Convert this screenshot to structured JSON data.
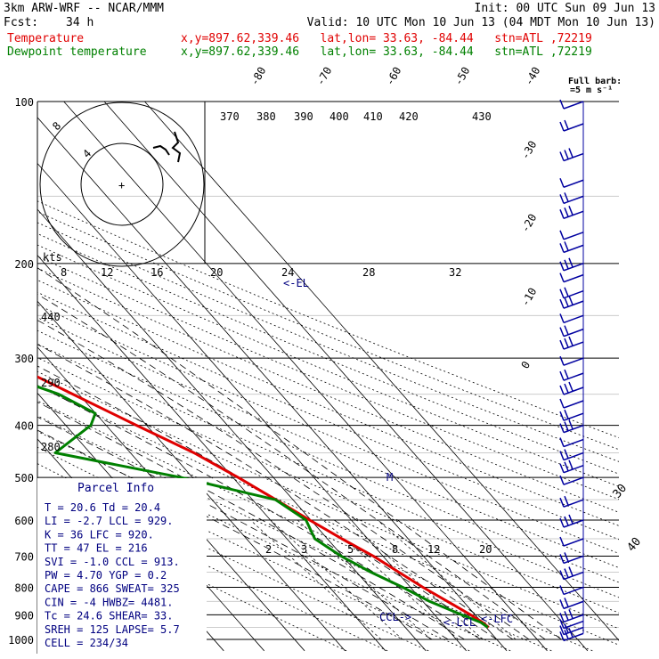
{
  "header": {
    "model": "3km ARW-WRF -- NCAR/MMM",
    "init": "Init: 00 UTC Sun 09 Jun 13",
    "fcst_label": "Fcst:",
    "fcst_hours": "34 h",
    "valid": "Valid: 10 UTC Mon 10 Jun 13 (04 MDT Mon 10 Jun 13)",
    "temp_label": "Temperature",
    "dew_label": "Dewpoint temperature",
    "coords_temp": "x,y=897.62,339.46   lat,lon= 33.63, -84.44   stn=ATL ,72219",
    "coords_dew": "x,y=897.62,339.46   lat,lon= 33.63, -84.44   stn=ATL ,72219"
  },
  "barb_key": {
    "line1": "Full barb:",
    "line2": "=5 m s⁻¹"
  },
  "hodograph": {
    "ring_labels": [
      "8",
      "4"
    ],
    "units_label": "kts",
    "speed_axis": [
      "8",
      "12",
      "16",
      "20",
      "24",
      "28",
      "32"
    ]
  },
  "parcel_info": {
    "title": "Parcel Info",
    "rows": [
      "T  =    20.6  Td =  20.4",
      "LI =    -2.7  LCL =  929.",
      "K  =      36  LFC =  920.",
      "TT =      47  EL  =   216",
      "SVI =   -1.0  CCL =  913.",
      "PW =    4.70  YGP =   0.2",
      "CAPE =   866  SWEAT=   325",
      "CIN =     -4  HWBZ= 4481.",
      "Tc =    24.6  SHEAR=   33.",
      "SREH =   125  LAPSE=   5.7",
      "CELL = 234/34"
    ]
  },
  "chart_data": {
    "type": "line",
    "title": "",
    "pressure_levels_hPa": [
      100,
      200,
      300,
      400,
      500,
      600,
      700,
      800,
      900,
      1000
    ],
    "pressure_tick_labels": [
      "100",
      "200",
      "300",
      "400",
      "500",
      "600",
      "700",
      "800",
      "900",
      "1000"
    ],
    "isotherm_labels_C": [
      "-80",
      "-70",
      "-60",
      "-50",
      "-40",
      "-30",
      "-20",
      "-10",
      "0",
      "30",
      "40"
    ],
    "theta_labels_K": [
      "370",
      "380",
      "390",
      "400",
      "410",
      "420",
      "430",
      "440",
      "290",
      "280",
      "270"
    ],
    "mixing_ratio_labels": [
      "2",
      "3",
      "5",
      "8",
      "12",
      "20"
    ],
    "annotations": [
      "EL",
      "M",
      "CCL",
      "LCL",
      "LFC"
    ],
    "series": [
      {
        "name": "Temperature",
        "color": "#e00000",
        "points": [
          [
            100,
            -65.6
          ],
          [
            150,
            -58.6
          ],
          [
            175,
            -58
          ],
          [
            200,
            -56.3
          ],
          [
            225,
            -54.6
          ],
          [
            250,
            -50.9
          ],
          [
            300,
            -41.8
          ],
          [
            350,
            -31.5
          ],
          [
            400,
            -22.5
          ],
          [
            450,
            -14.3
          ],
          [
            500,
            -8.7
          ],
          [
            550,
            -4.2
          ],
          [
            600,
            -0.3
          ],
          [
            650,
            3.6
          ],
          [
            700,
            7.6
          ],
          [
            750,
            10.4
          ],
          [
            800,
            13.1
          ],
          [
            850,
            16.1
          ],
          [
            900,
            18.9
          ],
          [
            930,
            20.2
          ],
          [
            950,
            20.6
          ]
        ]
      },
      {
        "name": "Dewpoint temperature",
        "color": "#008000",
        "points": [
          [
            100,
            -81
          ],
          [
            130,
            -88.5
          ],
          [
            150,
            -88.7
          ],
          [
            175,
            -86
          ],
          [
            200,
            -80.7
          ],
          [
            225,
            -71.9
          ],
          [
            250,
            -64.4
          ],
          [
            300,
            -52.6
          ],
          [
            350,
            -35
          ],
          [
            380,
            -30.1
          ],
          [
            400,
            -33.8
          ],
          [
            450,
            -48.6
          ],
          [
            500,
            -22.8
          ],
          [
            550,
            -4.3
          ],
          [
            600,
            -1.2
          ],
          [
            650,
            -3.1
          ],
          [
            700,
            -0.4
          ],
          [
            750,
            3.5
          ],
          [
            800,
            8.1
          ],
          [
            850,
            11.7
          ],
          [
            900,
            16.7
          ],
          [
            930,
            19.8
          ],
          [
            950,
            20.4
          ]
        ]
      }
    ],
    "wind_barbs_at_levels_hPa": [
      100,
      110,
      125,
      140,
      150,
      160,
      175,
      185,
      200,
      210,
      225,
      235,
      250,
      265,
      280,
      300,
      320,
      340,
      360,
      380,
      400,
      425,
      450,
      475,
      500,
      550,
      600,
      650,
      700,
      750,
      800,
      850,
      900,
      925,
      950,
      975
    ]
  }
}
